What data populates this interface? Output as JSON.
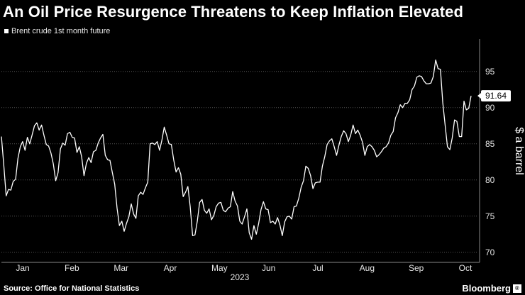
{
  "header": {
    "title": "An Oil Price Resurgence Threatens to Keep Inflation Elevated"
  },
  "footer": {
    "source": "Source: Office for National Statistics",
    "brand": "Bloomberg",
    "brand_mark": "®"
  },
  "colors": {
    "background": "#000000",
    "line": "#ffffff",
    "grid": "#555555",
    "text": "#ffffff"
  },
  "chart_data": {
    "type": "line",
    "title": "An Oil Price Resurgence Threatens to Keep Inflation Elevated",
    "legend": [
      "Brent crude 1st month future"
    ],
    "ylabel": "$ a barrel",
    "xlabel": "2023",
    "ylim": [
      69,
      99
    ],
    "yticks": [
      70,
      75,
      80,
      85,
      90,
      95
    ],
    "xticks": [
      "Jan",
      "Feb",
      "Mar",
      "Apr",
      "May",
      "Jun",
      "Jul",
      "Aug",
      "Sep",
      "Oct"
    ],
    "year_label": "2023",
    "last_value_label": "91.64",
    "series": [
      {
        "name": "Brent crude 1st month future",
        "values": [
          86.0,
          82.1,
          77.8,
          78.7,
          78.6,
          79.8,
          80.1,
          83.0,
          84.6,
          85.3,
          84.1,
          85.9,
          85.0,
          86.2,
          87.5,
          87.9,
          86.9,
          87.6,
          86.2,
          84.9,
          84.7,
          83.7,
          82.2,
          79.9,
          81.0,
          84.3,
          85.1,
          84.8,
          86.4,
          86.6,
          85.9,
          85.8,
          83.8,
          84.6,
          83.2,
          80.6,
          82.3,
          83.1,
          82.4,
          83.9,
          84.1,
          85.1,
          85.8,
          86.3,
          83.4,
          82.8,
          82.7,
          81.0,
          79.4,
          76.1,
          73.7,
          74.3,
          72.9,
          74.0,
          74.9,
          76.7,
          75.3,
          74.7,
          77.8,
          78.3,
          78.0,
          78.9,
          79.7,
          85.0,
          85.1,
          84.9,
          85.3,
          84.1,
          85.5,
          87.3,
          86.2,
          85.0,
          84.9,
          82.8,
          81.1,
          81.7,
          80.8,
          77.7,
          78.3,
          79.1,
          76.3,
          72.3,
          72.4,
          74.3,
          76.9,
          77.3,
          75.8,
          75.4,
          76.0,
          74.5,
          75.1,
          76.3,
          76.8,
          76.9,
          75.8,
          75.6,
          76.1,
          76.3,
          78.4,
          77.1,
          76.4,
          74.3,
          73.9,
          74.9,
          76.0,
          72.7,
          71.8,
          73.7,
          72.5,
          74.0,
          75.9,
          77.0,
          76.0,
          75.9,
          74.1,
          74.3,
          73.9,
          74.8,
          73.8,
          72.3,
          74.2,
          74.9,
          75.0,
          74.6,
          76.3,
          76.4,
          77.5,
          79.0,
          79.9,
          81.9,
          81.6,
          80.6,
          78.8,
          79.6,
          79.7,
          79.7,
          81.9,
          83.2,
          84.9,
          85.4,
          85.7,
          84.6,
          83.4,
          84.8,
          86.0,
          86.8,
          86.4,
          85.3,
          86.2,
          87.6,
          86.4,
          86.9,
          86.2,
          85.2,
          83.4,
          84.6,
          84.9,
          84.6,
          84.1,
          83.2,
          83.5,
          83.9,
          84.4,
          84.6,
          85.1,
          86.2,
          86.7,
          88.6,
          89.3,
          90.4,
          90.0,
          90.6,
          90.6,
          91.1,
          92.5,
          93.0,
          94.2,
          94.4,
          94.3,
          93.7,
          93.3,
          93.3,
          93.4,
          94.3,
          96.6,
          95.4,
          95.3,
          90.7,
          87.6,
          84.6,
          84.2,
          85.8,
          88.3,
          88.1,
          86.0,
          86.0,
          90.9,
          89.7,
          89.9,
          91.64
        ]
      }
    ]
  }
}
